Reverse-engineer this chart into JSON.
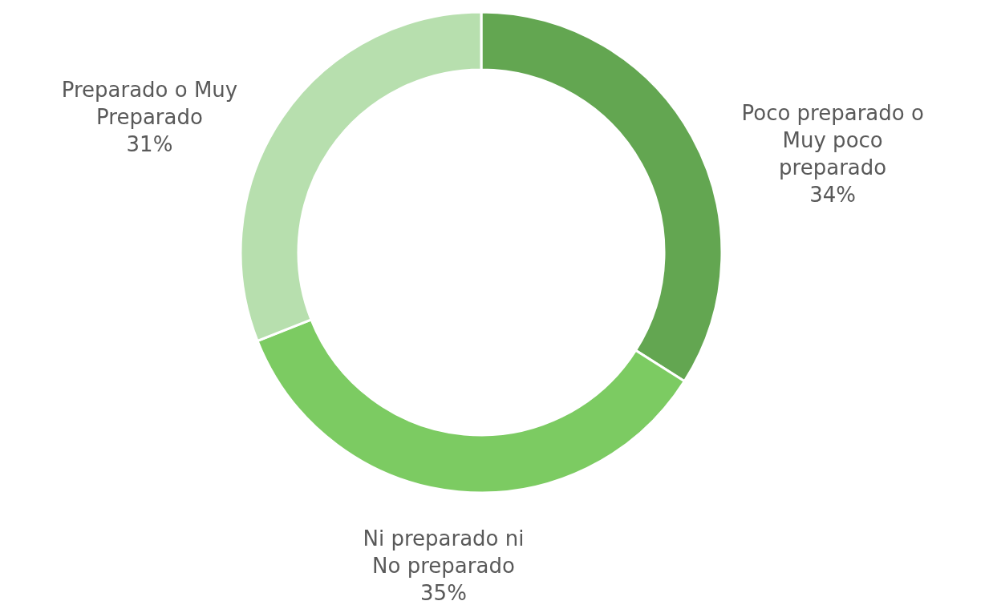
{
  "chart_data": {
    "type": "donut",
    "categories": [
      "Poco preparado o Muy poco preparado",
      "Ni preparado ni No preparado",
      "Preparado o Muy Preparado"
    ],
    "values": [
      34,
      35,
      31
    ],
    "value_labels": [
      "34%",
      "35%",
      "31%"
    ],
    "colors": [
      "#63a651",
      "#7ccb62",
      "#b7dfae"
    ]
  }
}
